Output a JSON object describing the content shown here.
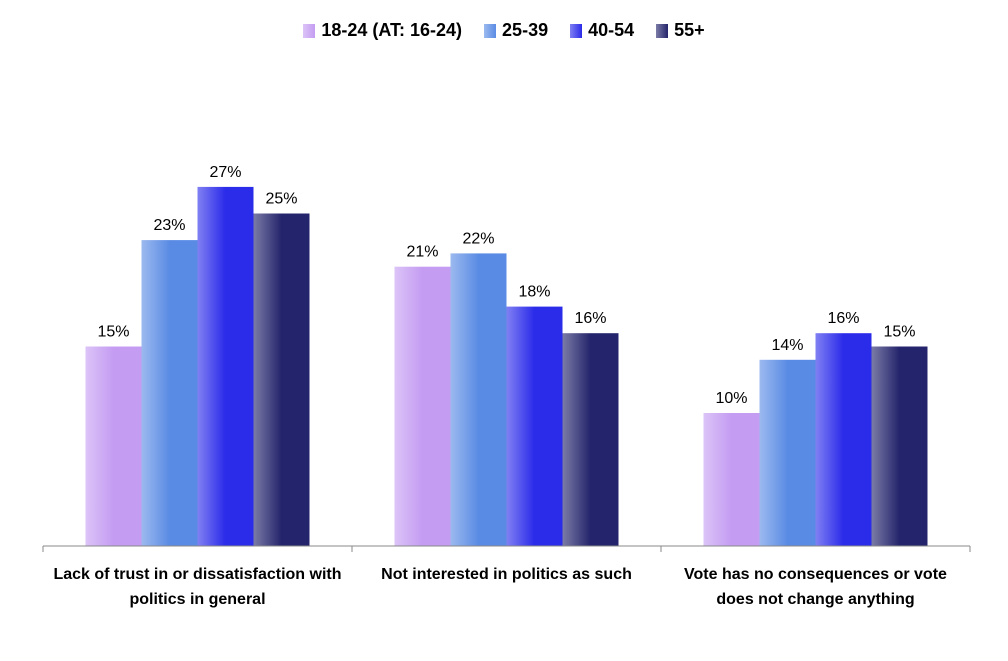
{
  "chart_data": {
    "type": "bar",
    "categories": [
      "Lack of trust in or dissatisfaction with politics in general",
      "Not interested in politics as such",
      "Vote has no consequences or vote does not change anything"
    ],
    "series": [
      {
        "name": "18-24 (AT: 16-24)",
        "color": "#c49cf2",
        "values": [
          15,
          21,
          10
        ],
        "value_labels": [
          "15%",
          "21%",
          "10%"
        ]
      },
      {
        "name": "25-39",
        "color": "#5a8be4",
        "values": [
          23,
          22,
          14
        ],
        "value_labels": [
          "23%",
          "22%",
          "14%"
        ]
      },
      {
        "name": "40-54",
        "color": "#2b2bea",
        "values": [
          27,
          18,
          16
        ],
        "value_labels": [
          "27%",
          "18%",
          "16%"
        ]
      },
      {
        "name": "55+",
        "color": "#24246c",
        "values": [
          25,
          16,
          15
        ],
        "value_labels": [
          "25%",
          "16%",
          "15%"
        ]
      }
    ],
    "legend": "top"
  }
}
